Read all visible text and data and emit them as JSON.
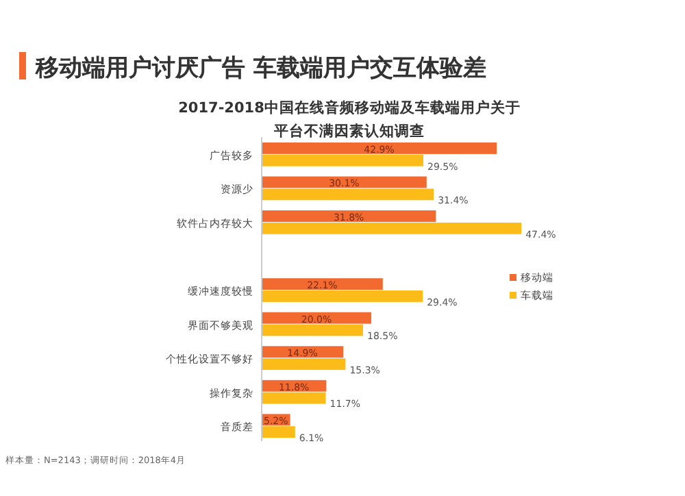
{
  "chart_data": {
    "type": "bar",
    "orientation": "horizontal",
    "title": "移动端用户讨厌广告 车载端用户交互体验差",
    "subtitle": "2017-2018中国在线音频移动端及车载端用户关于平台不满因素认知调查",
    "categories": [
      "广告较多",
      "资源少",
      "软件占内存较大",
      null,
      "缓冲速度较慢",
      "界面不够美观",
      "个性化设置不够好",
      "操作复杂",
      "音质差"
    ],
    "series": [
      {
        "name": "移动端",
        "color": "#f26a30",
        "values": [
          42.9,
          30.1,
          31.8,
          null,
          22.1,
          20.0,
          14.9,
          11.8,
          5.2
        ],
        "value_labels": [
          "42.9%",
          "30.1%",
          "31.8%",
          null,
          "22.1%",
          "20.0%",
          "14.9%",
          "11.8%",
          "5.2%"
        ]
      },
      {
        "name": "车载端",
        "color": "#fbbc1a",
        "values": [
          29.5,
          31.4,
          47.4,
          null,
          29.4,
          18.5,
          15.3,
          11.7,
          6.1
        ],
        "value_labels": [
          "29.5%",
          "31.4%",
          "47.4%",
          null,
          "29.4%",
          "18.5%",
          "15.3%",
          "11.7%",
          "6.1%"
        ]
      }
    ],
    "legend": "right",
    "grid": false,
    "annotations": [
      "样本量：N=2143；调研时间：2018年4月"
    ]
  }
}
